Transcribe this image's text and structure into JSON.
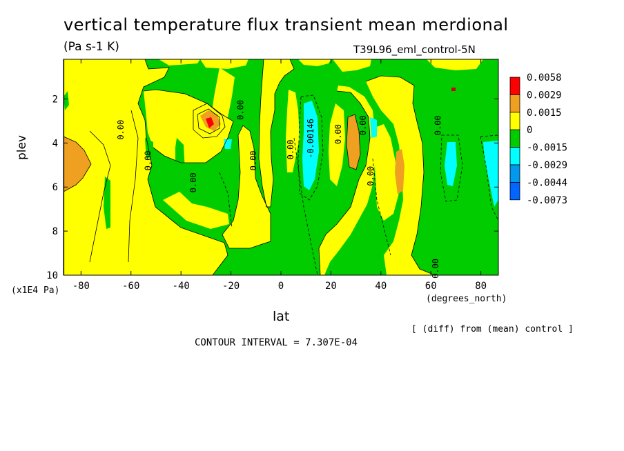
{
  "chart_data": {
    "type": "heatmap",
    "title": "vertical temperature flux transient mean merdional",
    "units": "(Pa s-1 K)",
    "run_label": "T39L96_eml_control-5N",
    "xlabel": "lat",
    "x_units": "(degrees_north)",
    "ylabel": "plev",
    "y_units": "(x1E4 Pa)",
    "x_ticks": [
      "-80",
      "-60",
      "-40",
      "-20",
      "0",
      "20",
      "40",
      "60",
      "80"
    ],
    "x_tick_values": [
      -80,
      -60,
      -40,
      -20,
      0,
      20,
      40,
      60,
      80
    ],
    "y_ticks": [
      "2",
      "4",
      "6",
      "8",
      "10"
    ],
    "y_tick_values": [
      2,
      4,
      6,
      8,
      10
    ],
    "xlim": [
      -87,
      87
    ],
    "ylim": [
      10,
      0.2
    ],
    "y_axis_inverted": true,
    "contour_interval_text": "CONTOUR INTERVAL = 7.307E-04",
    "note": "[ (diff) from (mean) control ]",
    "legend": {
      "placement": "right",
      "levels": [
        "0.0058",
        "0.0029",
        "0.0015",
        "0",
        "-0.0015",
        "-0.0029",
        "-0.0044",
        "-0.0073"
      ],
      "colors": [
        "#ff0000",
        "#f0a020",
        "#ffff00",
        "#00cc00",
        "#00ffff",
        "#0099ee",
        "#0066ff"
      ]
    },
    "colors": {
      "pos_high": "#ff0000",
      "pos_mid": "#f0a020",
      "pos_low": "#ffff00",
      "neg_low": "#00cc00",
      "neg_mid": "#00ffff",
      "neg_high": "#0099ee",
      "neg_max": "#0066ff"
    },
    "contour_labels": [
      {
        "text": "0.00",
        "lat": -63,
        "plev": 3.4
      },
      {
        "text": "0.00",
        "lat": -52,
        "plev": 4.8
      },
      {
        "text": "0.00",
        "lat": -34,
        "plev": 5.8
      },
      {
        "text": "0.00",
        "lat": -15,
        "plev": 2.5
      },
      {
        "text": "0.00",
        "lat": -10,
        "plev": 4.8
      },
      {
        "text": "0.00",
        "lat": 5,
        "plev": 4.3
      },
      {
        "text": "-0.00146",
        "lat": 13,
        "plev": 3.8
      },
      {
        "text": "0.00",
        "lat": 24,
        "plev": 3.6
      },
      {
        "text": "0.00",
        "lat": 34,
        "plev": 3.2
      },
      {
        "text": "0.00",
        "lat": 37,
        "plev": 5.5
      },
      {
        "text": "0.00",
        "lat": 64,
        "plev": 3.2
      },
      {
        "text": "0.00",
        "lat": 63,
        "plev": 9.7
      }
    ],
    "regions": [
      {
        "level": "pos_low",
        "lat": [
          -87,
          -60
        ],
        "plev": [
          0.2,
          10
        ]
      },
      {
        "level": "pos_mid",
        "lat": [
          -87,
          -78
        ],
        "plev": [
          3.8,
          6.2
        ]
      },
      {
        "level": "pos_mid",
        "lat": [
          -36,
          -26
        ],
        "plev": [
          2.6,
          3.7
        ]
      },
      {
        "level": "pos_high",
        "lat": [
          -31,
          -28
        ],
        "plev": [
          2.9,
          3.3
        ]
      },
      {
        "level": "neg_mid",
        "lat": [
          -21,
          -18
        ],
        "plev": [
          4.1,
          4.7
        ]
      },
      {
        "level": "neg_mid",
        "lat": [
          9,
          17
        ],
        "plev": [
          1.8,
          6.3
        ]
      },
      {
        "level": "pos_mid",
        "lat": [
          26,
          33
        ],
        "plev": [
          3.0,
          5.5
        ]
      },
      {
        "level": "neg_mid",
        "lat": [
          36,
          39
        ],
        "plev": [
          3.0,
          3.9
        ]
      },
      {
        "level": "pos_mid",
        "lat": [
          46,
          49
        ],
        "plev": [
          4.0,
          6.3
        ]
      },
      {
        "level": "neg_mid",
        "lat": [
          66,
          70
        ],
        "plev": [
          4.3,
          5.6
        ]
      },
      {
        "level": "neg_mid",
        "lat": [
          81,
          87
        ],
        "plev": [
          3.7,
          6.0
        ]
      }
    ]
  }
}
